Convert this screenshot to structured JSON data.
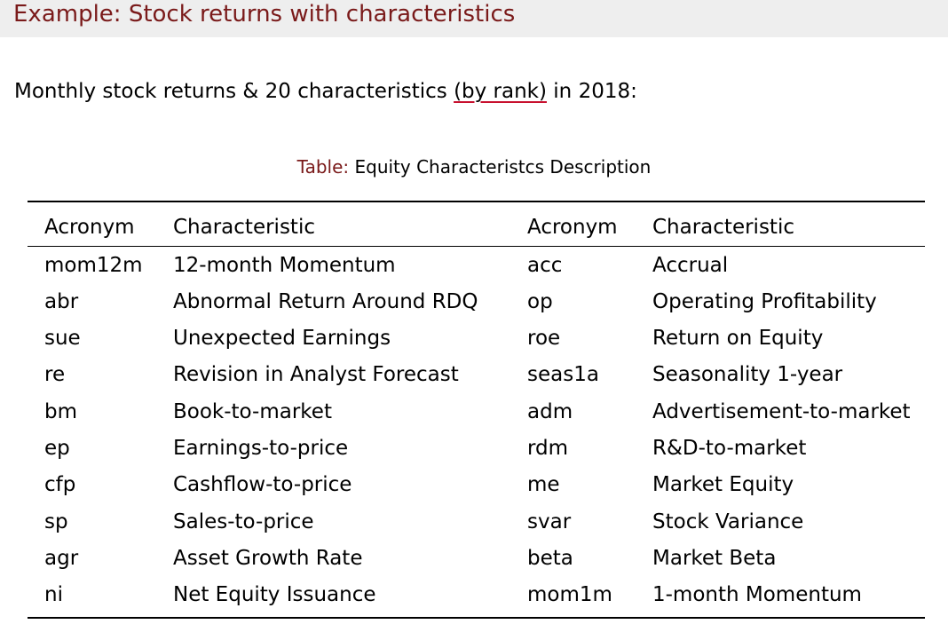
{
  "slide": {
    "title": "Example: Stock returns with characteristics",
    "intro_before": "Monthly stock returns & 20 characteristics ",
    "intro_link": "(by rank)",
    "intro_after": " in 2018:"
  },
  "table": {
    "caption_label": "Table:",
    "caption_text": " Equity Characteristcs Description",
    "headers": [
      "Acronym",
      "Characteristic",
      "Acronym",
      "Characteristic"
    ],
    "rows": [
      [
        "mom12m",
        "12-month Momentum",
        "acc",
        "Accrual"
      ],
      [
        "abr",
        "Abnormal Return Around RDQ",
        "op",
        "Operating Profitability"
      ],
      [
        "sue",
        "Unexpected Earnings",
        "roe",
        "Return on Equity"
      ],
      [
        "re",
        "Revision in Analyst Forecast",
        "seas1a",
        "Seasonality 1-year"
      ],
      [
        "bm",
        "Book-to-market",
        "adm",
        "Advertisement-to-market"
      ],
      [
        "ep",
        "Earnings-to-price",
        "rdm",
        "R&D-to-market"
      ],
      [
        "cfp",
        "Cashflow-to-price",
        "me",
        "Market Equity"
      ],
      [
        "sp",
        "Sales-to-price",
        "svar",
        "Stock Variance"
      ],
      [
        "agr",
        "Asset Growth Rate",
        "beta",
        "Market Beta"
      ],
      [
        "ni",
        "Net Equity Issuance",
        "mom1m",
        "1-month Momentum"
      ]
    ]
  },
  "colors": {
    "title": "#7a1a1a",
    "title_bar": "#eeeeee",
    "link_underline": "#c8102e"
  }
}
